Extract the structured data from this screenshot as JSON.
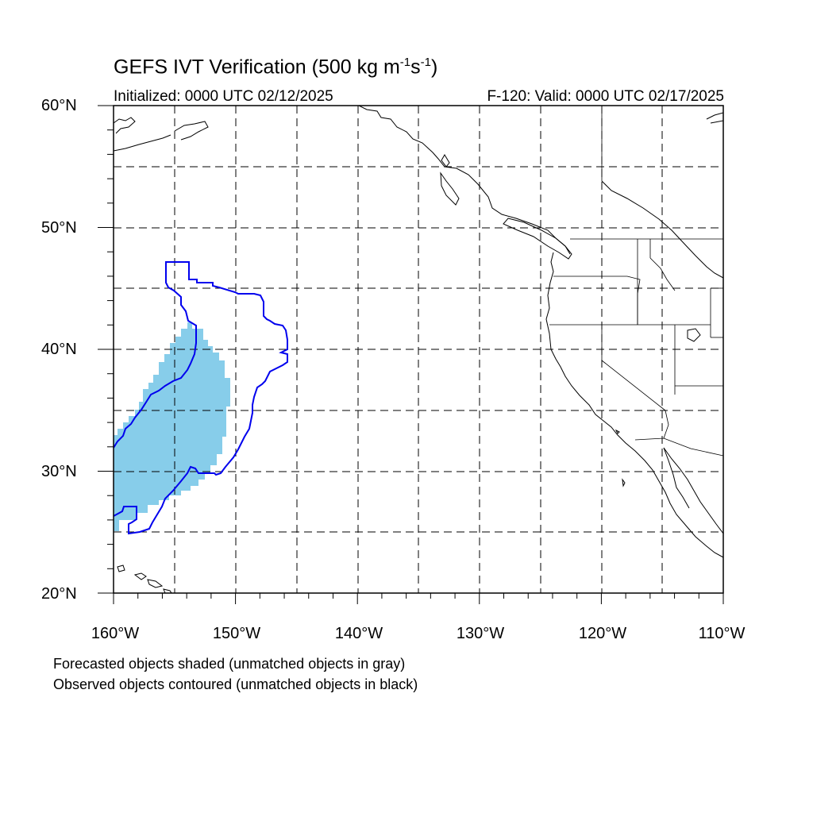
{
  "title": {
    "main": "GEFS IVT Verification (500 kg m",
    "sup1": "-1",
    "mid": "s",
    "sup2": "-1",
    "end": ")"
  },
  "initialized": "Initialized: 0000 UTC 02/12/2025",
  "valid": "F-120: Valid: 0000 UTC 02/17/2025",
  "lat_labels": [
    "60°N",
    "50°N",
    "40°N",
    "30°N",
    "20°N"
  ],
  "lon_labels": [
    "160°W",
    "150°W",
    "140°W",
    "130°W",
    "120°W",
    "110°W"
  ],
  "notes": [
    "Forecasted objects shaded (unmatched objects in gray)",
    "Observed objects contoured (unmatched objects in black)"
  ],
  "colors": {
    "forecast_fill": "#87cdea",
    "observed_contour": "#0000ee",
    "coast": "#000000",
    "grid": "#000000"
  }
}
